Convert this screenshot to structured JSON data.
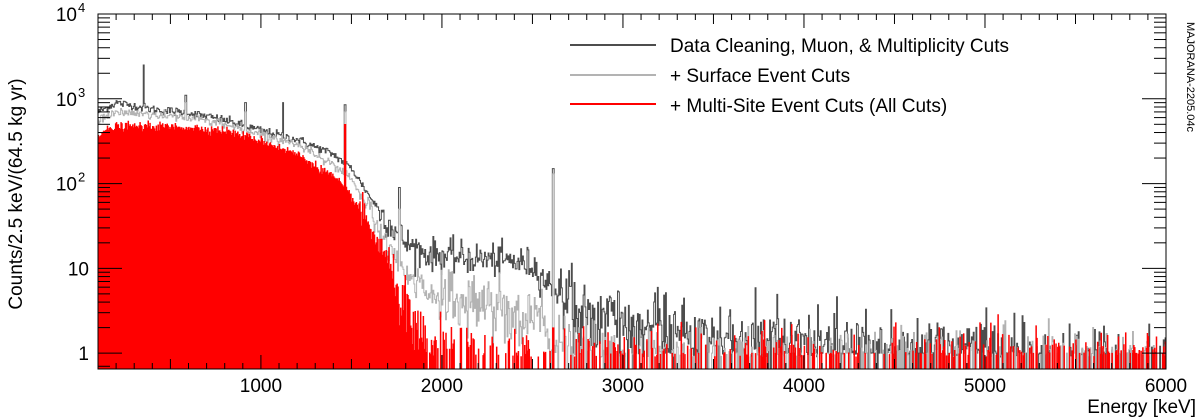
{
  "chart_data": {
    "type": "histogram",
    "xlabel": "Energy [keV]",
    "ylabel": "Counts/2.5 keV/(64.5 kg yr)",
    "side_label": "MAJORANA-2205.04c",
    "x_range": [
      100,
      6000
    ],
    "y_range": [
      0.65,
      10000
    ],
    "y_scale": "log",
    "bin_width_keV": 2.5,
    "x_ticks": [
      1000,
      2000,
      3000,
      4000,
      5000,
      6000
    ],
    "x_tick_labels": [
      "1000",
      "2000",
      "3000",
      "4000",
      "5000",
      "6000"
    ],
    "y_tick_labels": [
      {
        "value": 1,
        "base": "1",
        "exp": ""
      },
      {
        "value": 10,
        "base": "10",
        "exp": ""
      },
      {
        "value": 100,
        "base": "10",
        "exp": "2"
      },
      {
        "value": 1000,
        "base": "10",
        "exp": "3"
      },
      {
        "value": 10000,
        "base": "10",
        "exp": "4"
      }
    ],
    "legend_position": "top-right",
    "series": [
      {
        "name": "Data Cleaning, Muon, & Multiplicity Cuts",
        "color": "#4d4d4d",
        "envelope": [
          [
            100,
            700
          ],
          [
            200,
            900
          ],
          [
            400,
            750
          ],
          [
            600,
            680
          ],
          [
            800,
            560
          ],
          [
            1000,
            420
          ],
          [
            1200,
            330
          ],
          [
            1400,
            220
          ],
          [
            1500,
            150
          ],
          [
            1600,
            70
          ],
          [
            1700,
            35
          ],
          [
            1800,
            20
          ],
          [
            1900,
            15
          ],
          [
            2000,
            14
          ],
          [
            2200,
            13
          ],
          [
            2400,
            12
          ],
          [
            2500,
            11
          ],
          [
            2600,
            6
          ],
          [
            2800,
            3
          ],
          [
            3000,
            2
          ],
          [
            3500,
            1.5
          ],
          [
            4000,
            1.2
          ],
          [
            4500,
            1.1
          ],
          [
            5240,
            1
          ],
          [
            5250,
            0.7
          ]
        ],
        "peaks": [
          [
            350,
            2500
          ],
          [
            583,
            1100
          ],
          [
            911,
            900
          ],
          [
            1120,
            900
          ],
          [
            1461,
            850
          ],
          [
            1764,
            90
          ],
          [
            2614,
            150
          ]
        ]
      },
      {
        "name": "+ Surface Event Cuts",
        "color": "#b3b3b3",
        "envelope": [
          [
            100,
            560
          ],
          [
            200,
            700
          ],
          [
            400,
            650
          ],
          [
            600,
            600
          ],
          [
            800,
            500
          ],
          [
            1000,
            380
          ],
          [
            1200,
            290
          ],
          [
            1400,
            170
          ],
          [
            1500,
            110
          ],
          [
            1600,
            45
          ],
          [
            1700,
            18
          ],
          [
            1800,
            8
          ],
          [
            1900,
            6
          ],
          [
            2000,
            4.5
          ],
          [
            2200,
            4
          ],
          [
            2400,
            3
          ],
          [
            2500,
            2.5
          ],
          [
            2600,
            1.5
          ],
          [
            2800,
            0.9
          ],
          [
            3000,
            0.75
          ]
        ],
        "peaks": [
          [
            583,
            900
          ],
          [
            911,
            700
          ],
          [
            1461,
            700
          ],
          [
            1764,
            50
          ],
          [
            2614,
            130
          ]
        ]
      },
      {
        "name": "+ Multi-Site Event Cuts (All Cuts)",
        "color": "#ff0000",
        "envelope": [
          [
            100,
            380
          ],
          [
            200,
            470
          ],
          [
            400,
            470
          ],
          [
            600,
            460
          ],
          [
            800,
            420
          ],
          [
            1000,
            320
          ],
          [
            1200,
            220
          ],
          [
            1400,
            120
          ],
          [
            1500,
            70
          ],
          [
            1600,
            30
          ],
          [
            1700,
            12
          ],
          [
            1750,
            6
          ],
          [
            1800,
            3
          ],
          [
            1850,
            1.5
          ],
          [
            1950,
            1
          ],
          [
            2100,
            0.8
          ],
          [
            2300,
            0.75
          ]
        ],
        "peaks": [
          [
            1461,
            500
          ],
          [
            2614,
            2
          ]
        ]
      }
    ]
  }
}
